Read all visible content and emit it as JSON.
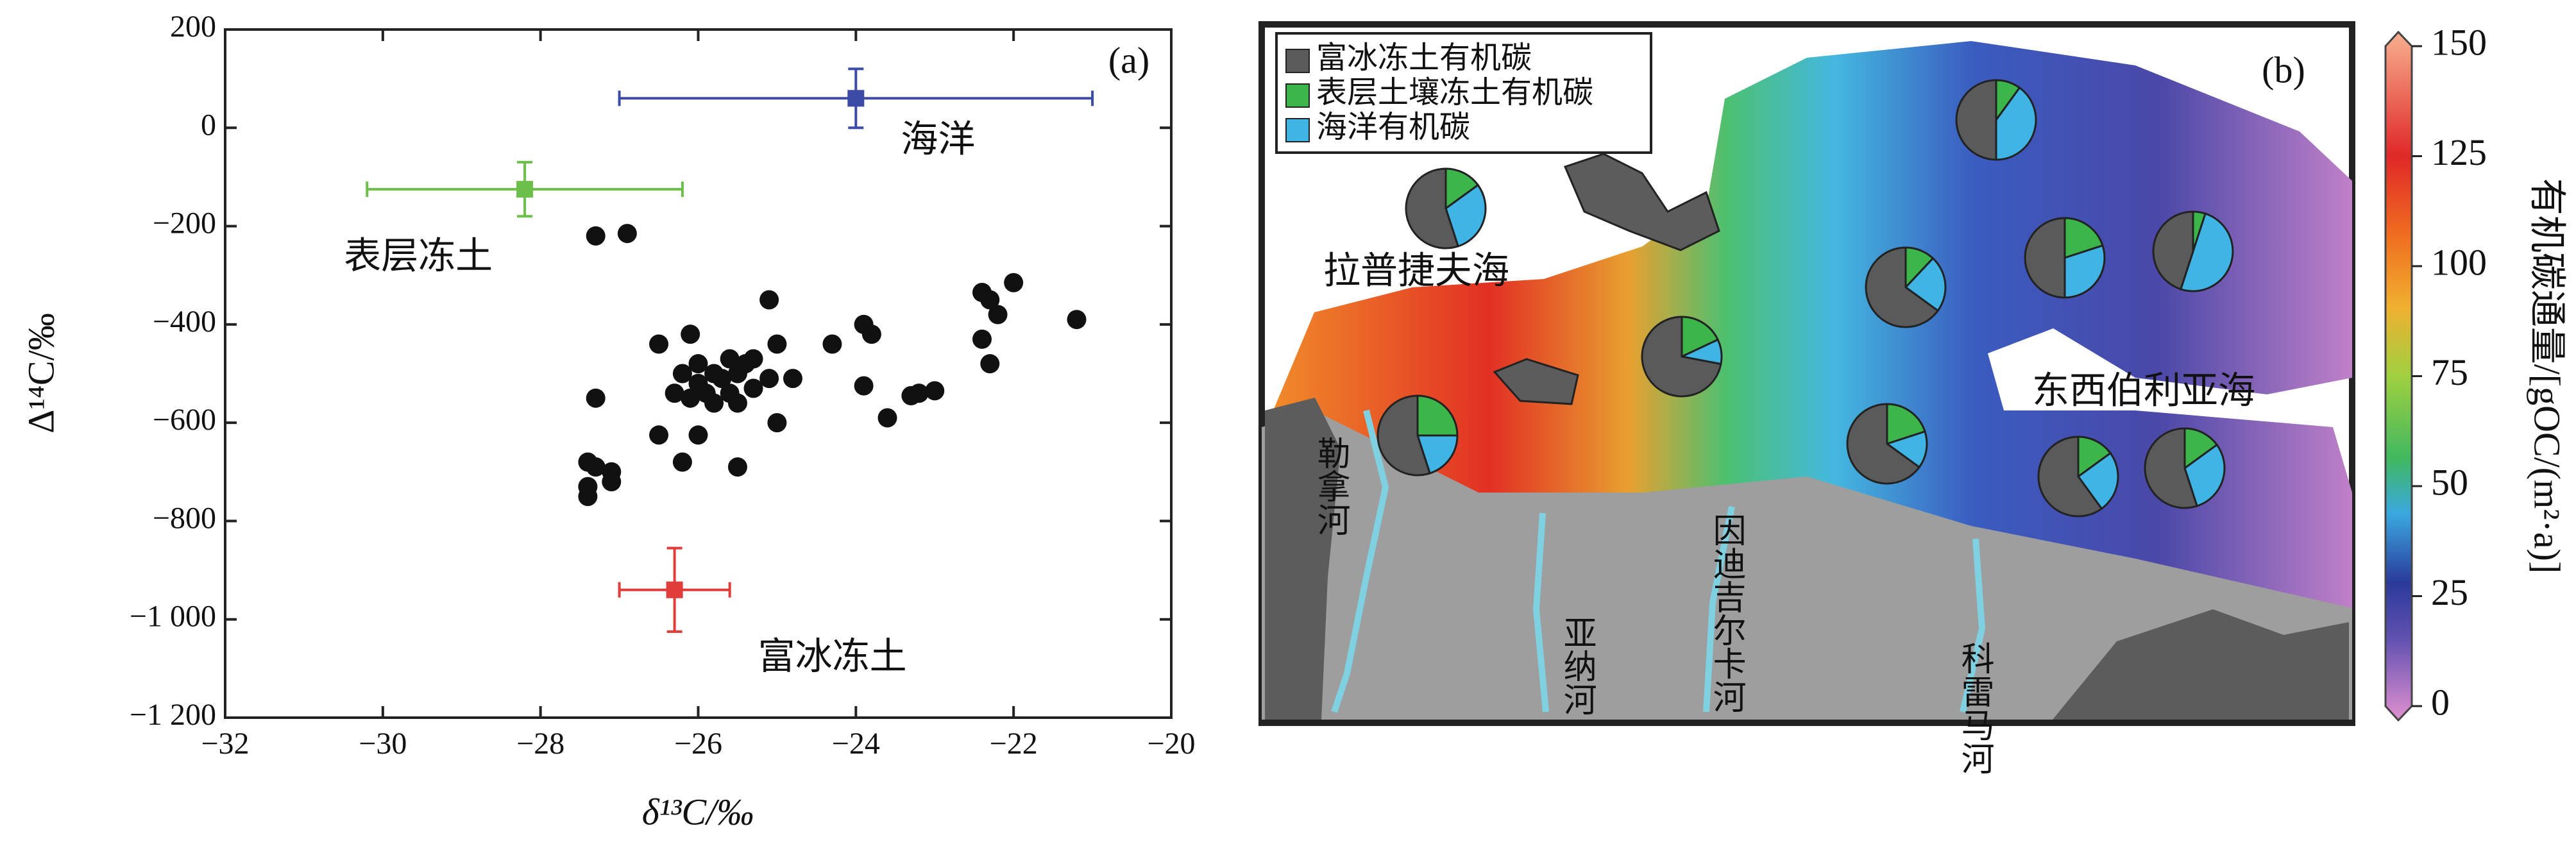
{
  "chart_data": [
    {
      "type": "scatter",
      "label": "(a)",
      "xlabel": "δ¹³C/‰",
      "ylabel": "Δ¹⁴C/‰",
      "xlim": [
        -32,
        -20
      ],
      "xticks": [
        {
          "value": -32,
          "label": "−32"
        },
        {
          "value": -30,
          "label": "−30"
        },
        {
          "value": -28,
          "label": "−28"
        },
        {
          "value": -26,
          "label": "−26"
        },
        {
          "value": -24,
          "label": "−24"
        },
        {
          "value": -22,
          "label": "−22"
        },
        {
          "value": -20,
          "label": "−20"
        }
      ],
      "ylim": [
        -1200,
        200
      ],
      "yticks": [
        200,
        0,
        {
          "value": -200,
          "label": "−200"
        },
        {
          "value": -400,
          "label": "−400"
        },
        {
          "value": -600,
          "label": "−600"
        },
        {
          "value": -800,
          "label": "−800"
        },
        {
          "value": -1000,
          "label": "−1 000"
        },
        {
          "value": -1200,
          "label": "−1 200"
        }
      ],
      "color": "#111111",
      "x": [
        -27.3,
        -26.9,
        -27.4,
        -27.4,
        -27.3,
        -27.1,
        -27.1,
        -27.4,
        -27.3,
        -26.5,
        -26.5,
        -26.2,
        -26.3,
        -26.2,
        -26.1,
        -26.0,
        -26.0,
        -25.9,
        -25.8,
        -25.7,
        -25.6,
        -25.6,
        -25.5,
        -25.5,
        -25.4,
        -25.3,
        -25.3,
        -25.1,
        -25.1,
        -25.0,
        -25.0,
        -24.8,
        -26.0,
        -25.5,
        -24.3,
        -23.9,
        -23.8,
        -23.9,
        -23.6,
        -23.3,
        -23.2,
        -23.0,
        -22.4,
        -22.3,
        -22.2,
        -22.0,
        -22.4,
        -22.3,
        -21.2,
        -25.8,
        -26.1
      ],
      "y": [
        -220,
        -215,
        -750,
        -730,
        -690,
        -700,
        -720,
        -680,
        -550,
        -440,
        -625,
        -680,
        -540,
        -500,
        -420,
        -480,
        -520,
        -540,
        -560,
        -510,
        -470,
        -540,
        -500,
        -560,
        -480,
        -470,
        -530,
        -510,
        -350,
        -440,
        -600,
        -510,
        -625,
        -690,
        -440,
        -400,
        -420,
        -525,
        -590,
        -545,
        -540,
        -535,
        -335,
        -350,
        -380,
        -315,
        -430,
        -480,
        -390,
        -500,
        -550
      ],
      "series": [
        {
          "name": "海洋",
          "color": "#3b4ba6",
          "x": -24.0,
          "xerr": 3.0,
          "y": 60,
          "yerr": 60
        },
        {
          "name": "表层冻土",
          "color": "#6cbf4a",
          "x": -28.2,
          "xerr": 2.0,
          "y": -125,
          "yerr": 55
        },
        {
          "name": "富冰冻土",
          "color": "#e03c3a",
          "x": -26.3,
          "xerr": 0.7,
          "y": -940,
          "yerr": 85
        }
      ]
    },
    {
      "type": "pie-map",
      "label": "(b)",
      "categories": [
        "富冰冻土有机碳",
        "表层土壤冻土有机碳",
        "海洋有机碳"
      ],
      "colors": [
        "#5a5a5a",
        "#3cb54a",
        "#3fb4e5"
      ],
      "pies": [
        {
          "values": [
            55,
            15,
            30
          ]
        },
        {
          "values": [
            50,
            10,
            40
          ]
        },
        {
          "values": [
            65,
            12,
            23
          ]
        },
        {
          "values": [
            50,
            20,
            30
          ]
        },
        {
          "values": [
            45,
            5,
            50
          ]
        },
        {
          "values": [
            72,
            18,
            10
          ]
        },
        {
          "values": [
            55,
            25,
            20
          ]
        },
        {
          "values": [
            65,
            20,
            15
          ]
        },
        {
          "values": [
            60,
            15,
            25
          ]
        },
        {
          "values": [
            55,
            15,
            30
          ]
        }
      ],
      "places": [
        "拉普捷夫海",
        "东西伯利亚海",
        "勒拿河",
        "亚纳河",
        "因迪吉尔卡河",
        "科雷马河"
      ],
      "colorbar": {
        "label": "有机碳通量/[gOC/(m²·a)]",
        "ylim": [
          0,
          150
        ],
        "yticks": [
          0,
          25,
          50,
          75,
          100,
          125,
          150
        ]
      }
    }
  ]
}
